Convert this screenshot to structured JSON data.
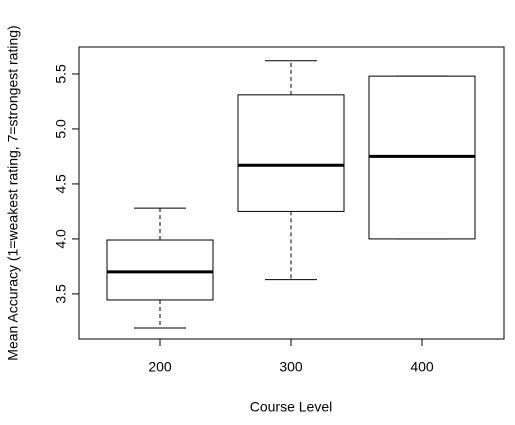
{
  "chart_data": {
    "type": "boxplot",
    "x_label": "Course Level",
    "y_label": "Mean Accuracy (1=weakest rating, 7=strongest rating)",
    "categories": [
      "200",
      "300",
      "400"
    ],
    "boxes": [
      {
        "min": 3.19,
        "q1": 3.445,
        "median": 3.7,
        "q3": 3.99,
        "max": 4.28
      },
      {
        "min": 3.63,
        "q1": 4.25,
        "median": 4.67,
        "q3": 5.31,
        "max": 5.62
      },
      {
        "min": 4.0,
        "q1": 4.0,
        "median": 4.75,
        "q3": 5.48,
        "max": 5.48
      }
    ],
    "ylim": [
      3.09,
      5.745
    ],
    "yticks": [
      3.5,
      {
        "value": 4,
        "label": "4.0"
      },
      4.5,
      {
        "value": 5,
        "label": "5.0"
      },
      5.5
    ],
    "color": "#000000"
  }
}
